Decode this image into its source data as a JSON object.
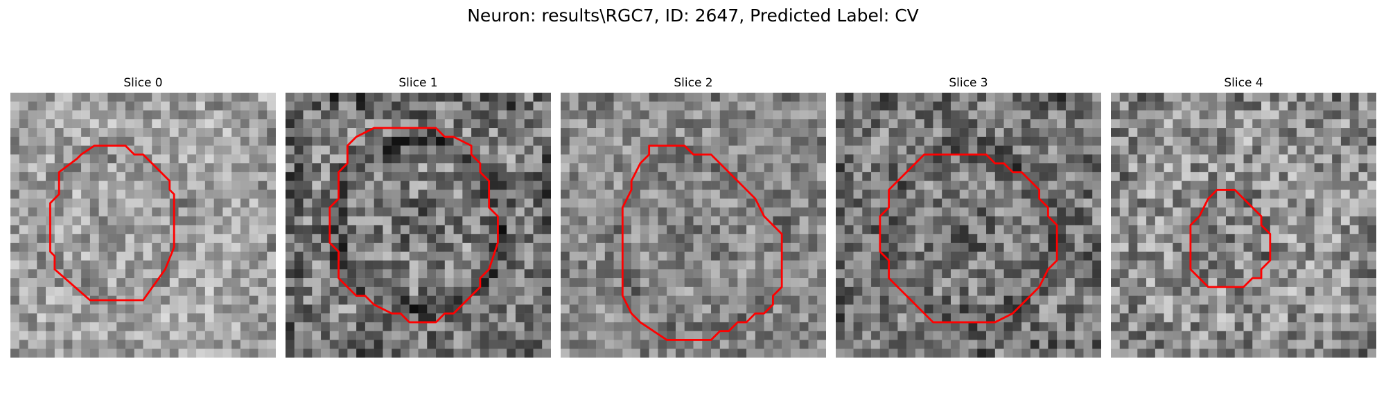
{
  "figure": {
    "suptitle": "Neuron: results\\RGC7, ID: 2647, Predicted Label: CV"
  },
  "colors": {
    "contour": "#ff0000",
    "background": "#ffffff"
  },
  "slices": [
    {
      "title": "Slice 0",
      "contour": [
        [
          10,
          6
        ],
        [
          13,
          6
        ],
        [
          14,
          7
        ],
        [
          15,
          7
        ],
        [
          18,
          10
        ],
        [
          18,
          11
        ],
        [
          18.5,
          11.5
        ],
        [
          18.5,
          17.5
        ],
        [
          17.5,
          20
        ],
        [
          15,
          23.5
        ],
        [
          9,
          23.5
        ],
        [
          5,
          20
        ],
        [
          5,
          18.5
        ],
        [
          4.5,
          18
        ],
        [
          4.5,
          12.5
        ],
        [
          5.5,
          11.5
        ],
        [
          5.5,
          9
        ],
        [
          7.5,
          7.5
        ],
        [
          8,
          7
        ],
        [
          9.5,
          6
        ]
      ]
    },
    {
      "title": "Slice 1",
      "contour": [
        [
          10,
          4
        ],
        [
          17,
          4
        ],
        [
          18,
          5
        ],
        [
          19,
          5
        ],
        [
          21,
          6
        ],
        [
          21,
          7
        ],
        [
          22,
          8
        ],
        [
          22,
          9
        ],
        [
          23,
          10
        ],
        [
          23,
          13
        ],
        [
          24,
          14
        ],
        [
          24,
          17
        ],
        [
          23,
          20
        ],
        [
          22,
          21
        ],
        [
          22,
          22
        ],
        [
          19,
          25
        ],
        [
          18,
          25
        ],
        [
          17,
          26
        ],
        [
          14,
          26
        ],
        [
          13,
          25
        ],
        [
          12,
          25
        ],
        [
          10,
          24
        ],
        [
          9,
          23
        ],
        [
          8,
          23
        ],
        [
          7,
          22
        ],
        [
          6,
          21
        ],
        [
          6,
          18
        ],
        [
          5,
          17
        ],
        [
          5,
          13
        ],
        [
          6,
          12
        ],
        [
          6,
          9
        ],
        [
          7,
          8
        ],
        [
          7,
          6
        ],
        [
          8,
          5
        ]
      ]
    },
    {
      "title": "Slice 2",
      "contour": [
        [
          10,
          6
        ],
        [
          14,
          6
        ],
        [
          15,
          7
        ],
        [
          17,
          7
        ],
        [
          20,
          10
        ],
        [
          21,
          11
        ],
        [
          22,
          12
        ],
        [
          23,
          14
        ],
        [
          25,
          16
        ],
        [
          25,
          22
        ],
        [
          24,
          23
        ],
        [
          24,
          24
        ],
        [
          23,
          25
        ],
        [
          22,
          25
        ],
        [
          21,
          26
        ],
        [
          20,
          26
        ],
        [
          19,
          27
        ],
        [
          18,
          27
        ],
        [
          17,
          28
        ],
        [
          16,
          28
        ],
        [
          15,
          28
        ],
        [
          12,
          28
        ],
        [
          9,
          26
        ],
        [
          8,
          25
        ],
        [
          7,
          23
        ],
        [
          7,
          13
        ],
        [
          8,
          11
        ],
        [
          8,
          10
        ],
        [
          9,
          8
        ],
        [
          10,
          7
        ]
      ]
    },
    {
      "title": "Slice 3",
      "contour": [
        [
          10,
          7
        ],
        [
          17,
          7
        ],
        [
          18,
          8
        ],
        [
          19,
          8
        ],
        [
          20,
          9
        ],
        [
          21,
          9
        ],
        [
          22,
          10
        ],
        [
          23,
          11
        ],
        [
          23,
          12
        ],
        [
          24,
          13
        ],
        [
          24,
          14
        ],
        [
          25,
          15
        ],
        [
          25,
          19
        ],
        [
          24,
          20
        ],
        [
          23,
          22
        ],
        [
          22,
          23
        ],
        [
          21,
          24
        ],
        [
          20,
          25
        ],
        [
          18,
          26
        ],
        [
          16,
          26
        ],
        [
          11,
          26
        ],
        [
          9,
          24
        ],
        [
          7,
          22
        ],
        [
          6,
          21
        ],
        [
          6,
          19
        ],
        [
          5,
          18
        ],
        [
          5,
          14
        ],
        [
          6,
          13
        ],
        [
          6,
          11
        ],
        [
          7,
          10
        ],
        [
          8,
          9
        ]
      ]
    },
    {
      "title": "Slice 4",
      "contour": [
        [
          12,
          11
        ],
        [
          14,
          11
        ],
        [
          15,
          12
        ],
        [
          16,
          13
        ],
        [
          17,
          14
        ],
        [
          17,
          15
        ],
        [
          18,
          16
        ],
        [
          18,
          19
        ],
        [
          17,
          20
        ],
        [
          17,
          21
        ],
        [
          16,
          21
        ],
        [
          15,
          22
        ],
        [
          11,
          22
        ],
        [
          10,
          21
        ],
        [
          9,
          20
        ],
        [
          9,
          15
        ],
        [
          10,
          14
        ],
        [
          11,
          12
        ]
      ]
    }
  ]
}
